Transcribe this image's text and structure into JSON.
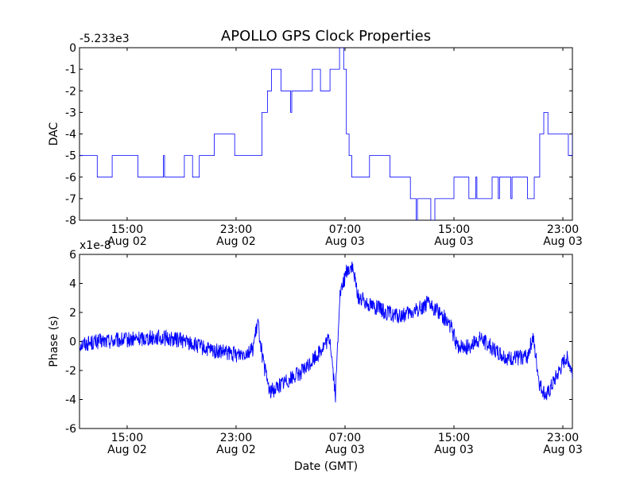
{
  "chart_data": [
    {
      "type": "line",
      "title": "APOLLO GPS Clock Properties",
      "ylabel": "DAC",
      "xlabel": "",
      "offset_label": "-5.233e3",
      "ylim": [
        -8,
        0
      ],
      "yticks": [
        0,
        -1,
        -2,
        -3,
        -4,
        -5,
        -6,
        -7,
        -8
      ],
      "xlim_hours": [
        11.5,
        47.7
      ],
      "xticks": [
        {
          "hour": 15,
          "time": "15:00",
          "date": "Aug 02"
        },
        {
          "hour": 23,
          "time": "23:00",
          "date": "Aug 02"
        },
        {
          "hour": 31,
          "time": "07:00",
          "date": "Aug 03"
        },
        {
          "hour": 39,
          "time": "15:00",
          "date": "Aug 03"
        },
        {
          "hour": 47,
          "time": "23:00",
          "date": "Aug 03"
        }
      ],
      "series": [
        {
          "name": "DAC",
          "color": "#0000ff",
          "segments": [
            [
              11.5,
              -5
            ],
            [
              12.5,
              -5
            ],
            [
              12.8,
              -6
            ],
            [
              13.6,
              -6
            ],
            [
              13.9,
              -5
            ],
            [
              15.6,
              -5
            ],
            [
              15.8,
              -6
            ],
            [
              18.9,
              -6
            ],
            [
              19.2,
              -5
            ],
            [
              19.8,
              -6
            ],
            [
              20.3,
              -5
            ],
            [
              21.2,
              -5
            ],
            [
              21.4,
              -4
            ],
            [
              22.6,
              -4
            ],
            [
              22.9,
              -5
            ],
            [
              24.5,
              -5
            ],
            [
              24.9,
              -3
            ],
            [
              25.3,
              -2
            ],
            [
              25.6,
              -1
            ],
            [
              26.3,
              -2
            ],
            [
              28.4,
              -2
            ],
            [
              28.6,
              -1
            ],
            [
              29.0,
              -1
            ],
            [
              29.2,
              -2
            ],
            [
              29.6,
              -2
            ],
            [
              29.9,
              -1
            ],
            [
              30.4,
              -1
            ],
            [
              30.6,
              0
            ],
            [
              30.9,
              -1
            ],
            [
              31.1,
              -4
            ],
            [
              31.3,
              -5
            ],
            [
              31.5,
              -6
            ],
            [
              32.5,
              -6
            ],
            [
              32.8,
              -5
            ],
            [
              34.0,
              -5
            ],
            [
              34.3,
              -6
            ],
            [
              35.6,
              -6
            ],
            [
              35.8,
              -7
            ],
            [
              37.1,
              -7
            ],
            [
              37.3,
              -8
            ],
            [
              37.6,
              -7
            ],
            [
              38.8,
              -7
            ],
            [
              39.0,
              -6
            ],
            [
              39.9,
              -6
            ],
            [
              40.1,
              -7
            ],
            [
              41.6,
              -7
            ],
            [
              41.8,
              -6
            ],
            [
              44.1,
              -6
            ],
            [
              44.4,
              -7
            ],
            [
              44.9,
              -6
            ],
            [
              45.3,
              -4
            ],
            [
              45.6,
              -3
            ],
            [
              45.9,
              -4
            ],
            [
              47.2,
              -4
            ],
            [
              47.4,
              -5
            ],
            [
              47.7,
              -4
            ]
          ]
        }
      ]
    },
    {
      "type": "line",
      "title": "",
      "ylabel": "Phase (s)",
      "xlabel": "Date (GMT)",
      "offset_label": "x1e-8",
      "ylim": [
        -6,
        6
      ],
      "yticks": [
        6,
        4,
        2,
        0,
        -2,
        -4,
        -6
      ],
      "xlim_hours": [
        11.5,
        47.7
      ],
      "xticks": [
        {
          "hour": 15,
          "time": "15:00",
          "date": "Aug 02"
        },
        {
          "hour": 23,
          "time": "23:00",
          "date": "Aug 02"
        },
        {
          "hour": 31,
          "time": "07:00",
          "date": "Aug 03"
        },
        {
          "hour": 39,
          "time": "15:00",
          "date": "Aug 03"
        },
        {
          "hour": 47,
          "time": "23:00",
          "date": "Aug 03"
        }
      ],
      "series": [
        {
          "name": "Phase",
          "color": "#0000ff",
          "noise": 0.55,
          "points": [
            [
              11.5,
              -0.2
            ],
            [
              13.0,
              0.0
            ],
            [
              15.0,
              0.1
            ],
            [
              17.0,
              0.3
            ],
            [
              19.0,
              0.1
            ],
            [
              21.0,
              -0.6
            ],
            [
              23.0,
              -0.9
            ],
            [
              24.2,
              -0.6
            ],
            [
              24.6,
              1.3
            ],
            [
              25.0,
              -1.5
            ],
            [
              25.5,
              -3.5
            ],
            [
              26.5,
              -2.8
            ],
            [
              28.0,
              -2.0
            ],
            [
              29.3,
              -0.5
            ],
            [
              29.9,
              0.2
            ],
            [
              30.3,
              -3.8
            ],
            [
              30.6,
              3.0
            ],
            [
              31.1,
              4.8
            ],
            [
              31.5,
              5.2
            ],
            [
              32.0,
              3.0
            ],
            [
              33.0,
              2.5
            ],
            [
              34.0,
              2.0
            ],
            [
              35.0,
              1.7
            ],
            [
              36.0,
              2.0
            ],
            [
              37.0,
              2.6
            ],
            [
              38.0,
              2.0
            ],
            [
              38.8,
              1.0
            ],
            [
              39.2,
              -0.3
            ],
            [
              40.0,
              -0.4
            ],
            [
              41.0,
              0.2
            ],
            [
              42.0,
              -0.6
            ],
            [
              43.0,
              -1.2
            ],
            [
              44.4,
              -1.0
            ],
            [
              44.8,
              0.3
            ],
            [
              45.3,
              -3.0
            ],
            [
              45.8,
              -3.8
            ],
            [
              46.5,
              -2.5
            ],
            [
              47.3,
              -1.0
            ],
            [
              47.7,
              -2.2
            ]
          ]
        }
      ]
    }
  ]
}
